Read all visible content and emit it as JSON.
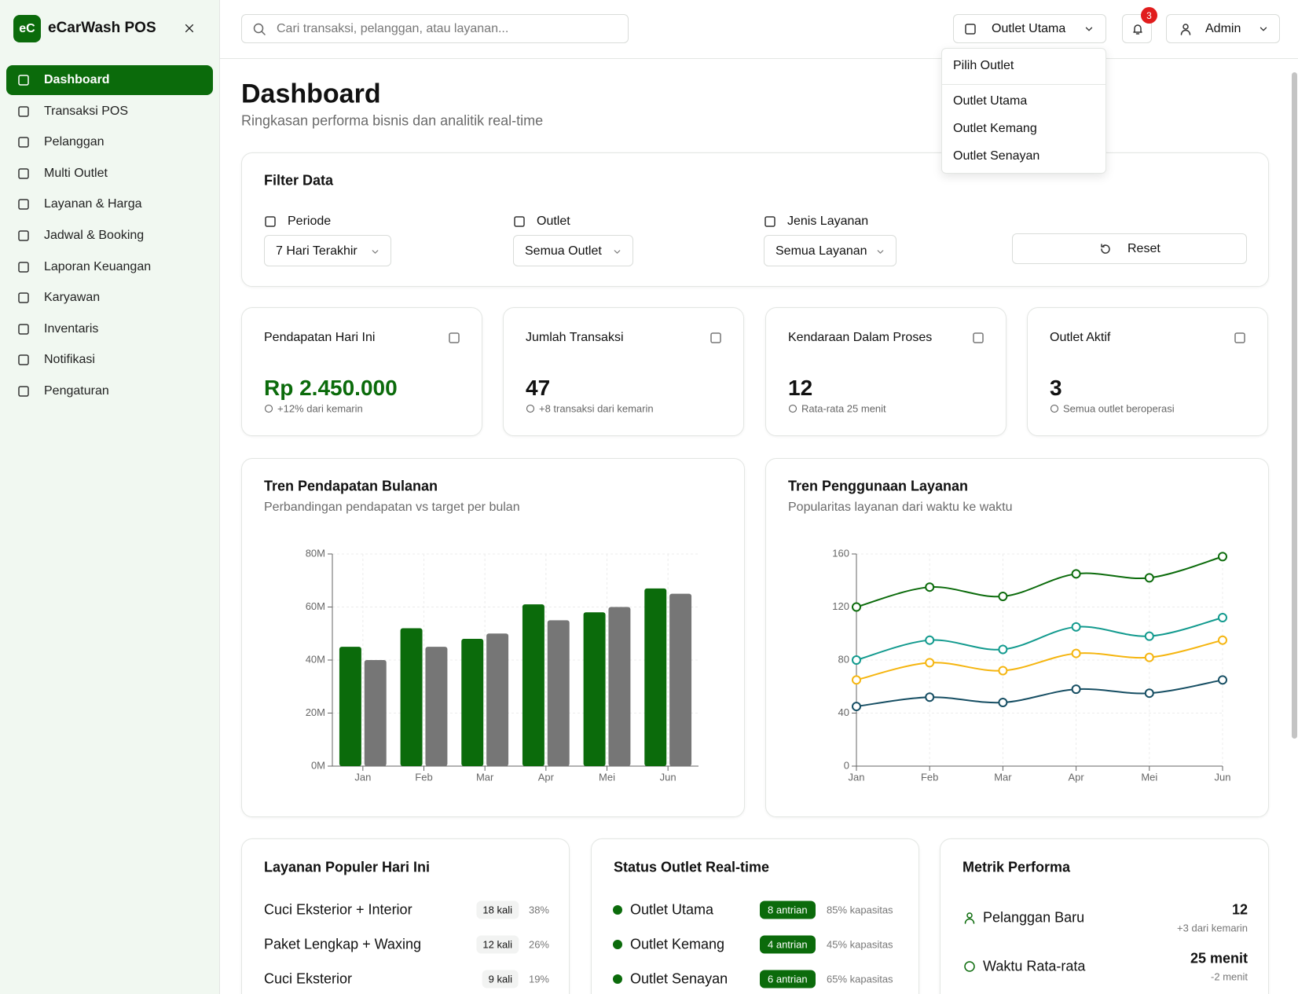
{
  "sidebar": {
    "logo": "eC",
    "app_name": "eCarWash POS",
    "menu": [
      "Dashboard",
      "Transaksi POS",
      "Pelanggan",
      "Multi Outlet",
      "Layanan & Harga",
      "Jadwal & Booking",
      "Laporan Keuangan",
      "Karyawan",
      "Inventaris",
      "Notifikasi",
      "Pengaturan"
    ]
  },
  "header": {
    "search_placeholder": "Cari transaksi, pelanggan, atau layanan...",
    "outlet": "Outlet Utama",
    "notifications": 3,
    "user": "Admin"
  },
  "outlet_menu": {
    "title": "Pilih Outlet",
    "items": [
      "Outlet Utama",
      "Outlet Kemang",
      "Outlet Senayan"
    ]
  },
  "page": {
    "title": "Dashboard",
    "subtitle": "Ringkasan performa bisnis dan analitik real-time"
  },
  "filter": {
    "title": "Filter Data",
    "fields": [
      {
        "label": "Periode",
        "value": "7 Hari Terakhir"
      },
      {
        "label": "Outlet",
        "value": "Semua Outlet"
      },
      {
        "label": "Jenis Layanan",
        "value": "Semua Layanan"
      }
    ],
    "reset": "Reset"
  },
  "stats": [
    {
      "label": "Pendapatan Hari Ini",
      "value": "Rp 2.450.000",
      "note": "+12% dari kemarin"
    },
    {
      "label": "Jumlah Transaksi",
      "value": "47",
      "note": "+8 transaksi dari kemarin"
    },
    {
      "label": "Kendaraan Dalam Proses",
      "value": "12",
      "note": "Rata-rata 25 menit"
    },
    {
      "label": "Outlet Aktif",
      "value": "3",
      "note": "Semua outlet beroperasi"
    }
  ],
  "chart_data": [
    {
      "type": "bar",
      "title": "Tren Pendapatan Bulanan",
      "subtitle": "Perbandingan pendapatan vs target per bulan",
      "categories": [
        "Jan",
        "Feb",
        "Mar",
        "Apr",
        "Mei",
        "Jun"
      ],
      "series": [
        {
          "color": "#0b6b0b",
          "values": [
            45,
            52,
            48,
            61,
            58,
            67
          ]
        },
        {
          "color": "#767676",
          "values": [
            40,
            45,
            50,
            55,
            60,
            65
          ]
        }
      ],
      "ylim": [
        0,
        80
      ],
      "yticks": [
        {
          "value": 0,
          "label": "0M"
        },
        {
          "value": 20,
          "label": "20M"
        },
        {
          "value": 40,
          "label": "40M"
        },
        {
          "value": 60,
          "label": "60M"
        },
        {
          "value": 80,
          "label": "80M"
        }
      ],
      "grid": true
    },
    {
      "type": "line",
      "title": "Tren Penggunaan Layanan",
      "subtitle": "Popularitas layanan dari waktu ke waktu",
      "categories": [
        "Jan",
        "Feb",
        "Mar",
        "Apr",
        "Mei",
        "Jun"
      ],
      "series": [
        {
          "color": "#0b6b0b",
          "values": [
            120,
            135,
            128,
            145,
            142,
            158
          ]
        },
        {
          "color": "#129a8e",
          "values": [
            80,
            95,
            88,
            105,
            98,
            112
          ]
        },
        {
          "color": "#f5b50f",
          "values": [
            65,
            78,
            72,
            85,
            82,
            95
          ]
        },
        {
          "color": "#164e63",
          "values": [
            45,
            52,
            48,
            58,
            55,
            65
          ]
        }
      ],
      "ylim": [
        0,
        160
      ],
      "yticks": [
        0,
        40,
        80,
        120,
        160
      ],
      "grid": true
    }
  ],
  "popular_services": {
    "title": "Layanan Populer Hari Ini",
    "items": [
      {
        "name": "Cuci Eksterior + Interior",
        "count": "18 kali",
        "share": "38%"
      },
      {
        "name": "Paket Lengkap + Waxing",
        "count": "12 kali",
        "share": "26%"
      },
      {
        "name": "Cuci Eksterior",
        "count": "9 kali",
        "share": "19%"
      }
    ]
  },
  "outlet_status": {
    "title": "Status Outlet Real-time",
    "items": [
      {
        "name": "Outlet Utama",
        "queue": "8 antrian",
        "capacity": "85% kapasitas"
      },
      {
        "name": "Outlet Kemang",
        "queue": "4 antrian",
        "capacity": "45% kapasitas"
      },
      {
        "name": "Outlet Senayan",
        "queue": "6 antrian",
        "capacity": "65% kapasitas"
      }
    ]
  },
  "metrics": {
    "title": "Metrik Performa",
    "items": [
      {
        "label": "Pelanggan Baru",
        "value": "12",
        "note": "+3 dari kemarin"
      },
      {
        "label": "Waktu Rata-rata",
        "value": "25 menit",
        "note": "-2 menit"
      }
    ]
  }
}
